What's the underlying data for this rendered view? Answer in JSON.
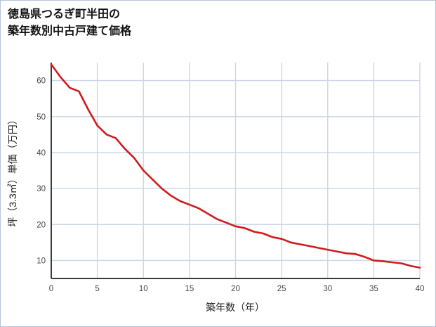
{
  "page": {
    "title": "徳島県つるぎ町半田の\n築年数別中古戸建て価格"
  },
  "chart_data": {
    "type": "line",
    "title": "徳島県つるぎ町半田の築年数別中古戸建て価格",
    "xlabel": "築年数（年）",
    "ylabel": "坪（3.3㎡）単価（万円）",
    "x": [
      0,
      1,
      2,
      3,
      4,
      5,
      6,
      7,
      8,
      9,
      10,
      11,
      12,
      13,
      14,
      15,
      16,
      17,
      18,
      19,
      20,
      21,
      22,
      23,
      24,
      25,
      26,
      27,
      28,
      29,
      30,
      31,
      32,
      33,
      34,
      35,
      36,
      37,
      38,
      39,
      40
    ],
    "values": [
      64.5,
      61,
      58,
      57,
      52,
      47.5,
      45,
      44,
      41,
      38.5,
      35,
      32.5,
      30,
      28,
      26.5,
      25.5,
      24.5,
      23,
      21.5,
      20.5,
      19.5,
      19,
      18,
      17.5,
      16.5,
      16,
      15,
      14.5,
      14,
      13.5,
      13,
      12.5,
      12,
      11.8,
      11,
      10,
      9.8,
      9.5,
      9.2,
      8.5,
      8
    ],
    "xlim": [
      0,
      40
    ],
    "ylim": [
      5,
      65
    ],
    "x_ticks": [
      0,
      5,
      10,
      15,
      20,
      25,
      30,
      35,
      40
    ],
    "y_ticks": [
      10,
      20,
      30,
      40,
      50,
      60
    ],
    "grid": true,
    "legend": "none",
    "line_color": "#d11a1c",
    "grid_color": "#ccd6e8",
    "axis_color": "#3a3a3a",
    "tick_label_color": "#444444"
  }
}
